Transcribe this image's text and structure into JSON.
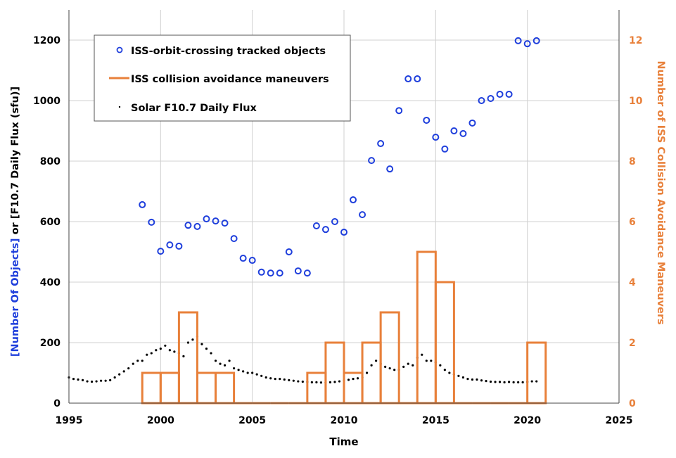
{
  "chart_data": {
    "type": "scatter",
    "title": "",
    "xlabel": "Time",
    "ylabel_left": "[Number Of Objects] or [F10.7 Daily Flux (sfu)]",
    "ylabel_left_parts": [
      "[Number Of Objects]",
      " or [F10.7 Daily Flux (sfu)]"
    ],
    "ylabel_right": "Number of ISS Collision Avoidance Maneuvers",
    "xlim": [
      1995,
      2025
    ],
    "ylim_left": [
      0,
      1300
    ],
    "ylim_right": [
      0,
      13
    ],
    "x_ticks": [
      1995,
      2000,
      2005,
      2010,
      2015,
      2020,
      2025
    ],
    "y_ticks_left": [
      0,
      200,
      400,
      600,
      800,
      1000,
      1200
    ],
    "y_ticks_right": [
      0,
      2,
      4,
      6,
      8,
      10,
      12
    ],
    "grid": true,
    "legend_position": "top-left",
    "colors": {
      "objects": "#1f3fdc",
      "maneuvers": "#e8803a",
      "flux": "#000000",
      "grid": "#d0d0d0",
      "left_label": "#1f3fdc",
      "right_axis": "#e8803a"
    },
    "series": [
      {
        "name": "ISS-orbit-crossing tracked objects",
        "kind": "open-circle",
        "axis": "left",
        "x": [
          1999.0,
          1999.5,
          2000.0,
          2000.5,
          2001.0,
          2001.5,
          2002.0,
          2002.5,
          2003.0,
          2003.5,
          2004.0,
          2004.5,
          2005.0,
          2005.5,
          2006.0,
          2006.5,
          2007.0,
          2007.5,
          2008.0,
          2008.5,
          2009.0,
          2009.5,
          2010.0,
          2010.5,
          2011.0,
          2011.5,
          2012.0,
          2012.5,
          2013.0,
          2013.5,
          2014.0,
          2014.5,
          2015.0,
          2015.5,
          2016.0,
          2016.5,
          2017.0,
          2017.5,
          2018.0,
          2018.5,
          2019.0,
          2019.5,
          2020.0,
          2020.5
        ],
        "y": [
          656,
          598,
          502,
          523,
          519,
          588,
          584,
          609,
          602,
          595,
          544,
          479,
          472,
          433,
          430,
          430,
          500,
          437,
          430,
          586,
          574,
          600,
          565,
          672,
          623,
          802,
          858,
          774,
          967,
          1072,
          1072,
          935,
          879,
          840,
          900,
          891,
          926,
          1000,
          1007,
          1021,
          1021,
          1198,
          1188,
          1198
        ]
      },
      {
        "name": "ISS collision avoidance maneuvers",
        "kind": "yearly-bars-outline",
        "axis": "right",
        "years": [
          1999,
          2000,
          2001,
          2002,
          2003,
          2004,
          2005,
          2006,
          2007,
          2008,
          2009,
          2010,
          2011,
          2012,
          2013,
          2014,
          2015,
          2016,
          2017,
          2018,
          2019,
          2020
        ],
        "values": [
          1,
          1,
          3,
          1,
          1,
          0,
          0,
          0,
          0,
          1,
          2,
          1,
          2,
          3,
          0,
          5,
          4,
          0,
          0,
          0,
          0,
          2
        ]
      },
      {
        "name": "Solar F10.7 Daily Flux",
        "kind": "dot",
        "axis": "left",
        "x_start": 1995.0,
        "x_step": 0.25,
        "y": [
          85,
          80,
          78,
          76,
          72,
          71,
          72,
          74,
          74,
          76,
          85,
          95,
          105,
          115,
          130,
          140,
          140,
          160,
          165,
          175,
          180,
          190,
          175,
          170,
          165,
          155,
          200,
          210,
          220,
          195,
          180,
          165,
          140,
          130,
          125,
          140,
          115,
          110,
          105,
          100,
          100,
          95,
          90,
          85,
          82,
          80,
          80,
          78,
          76,
          74,
          72,
          71,
          70,
          69,
          69,
          68,
          68,
          69,
          70,
          72,
          76,
          77,
          80,
          82,
          85,
          100,
          125,
          140,
          130,
          120,
          115,
          110,
          110,
          120,
          130,
          125,
          150,
          160,
          140,
          140,
          135,
          125,
          110,
          100,
          95,
          90,
          85,
          80,
          78,
          78,
          75,
          73,
          71,
          70,
          70,
          69,
          70,
          69,
          69,
          69,
          70,
          72,
          72
        ]
      }
    ]
  }
}
